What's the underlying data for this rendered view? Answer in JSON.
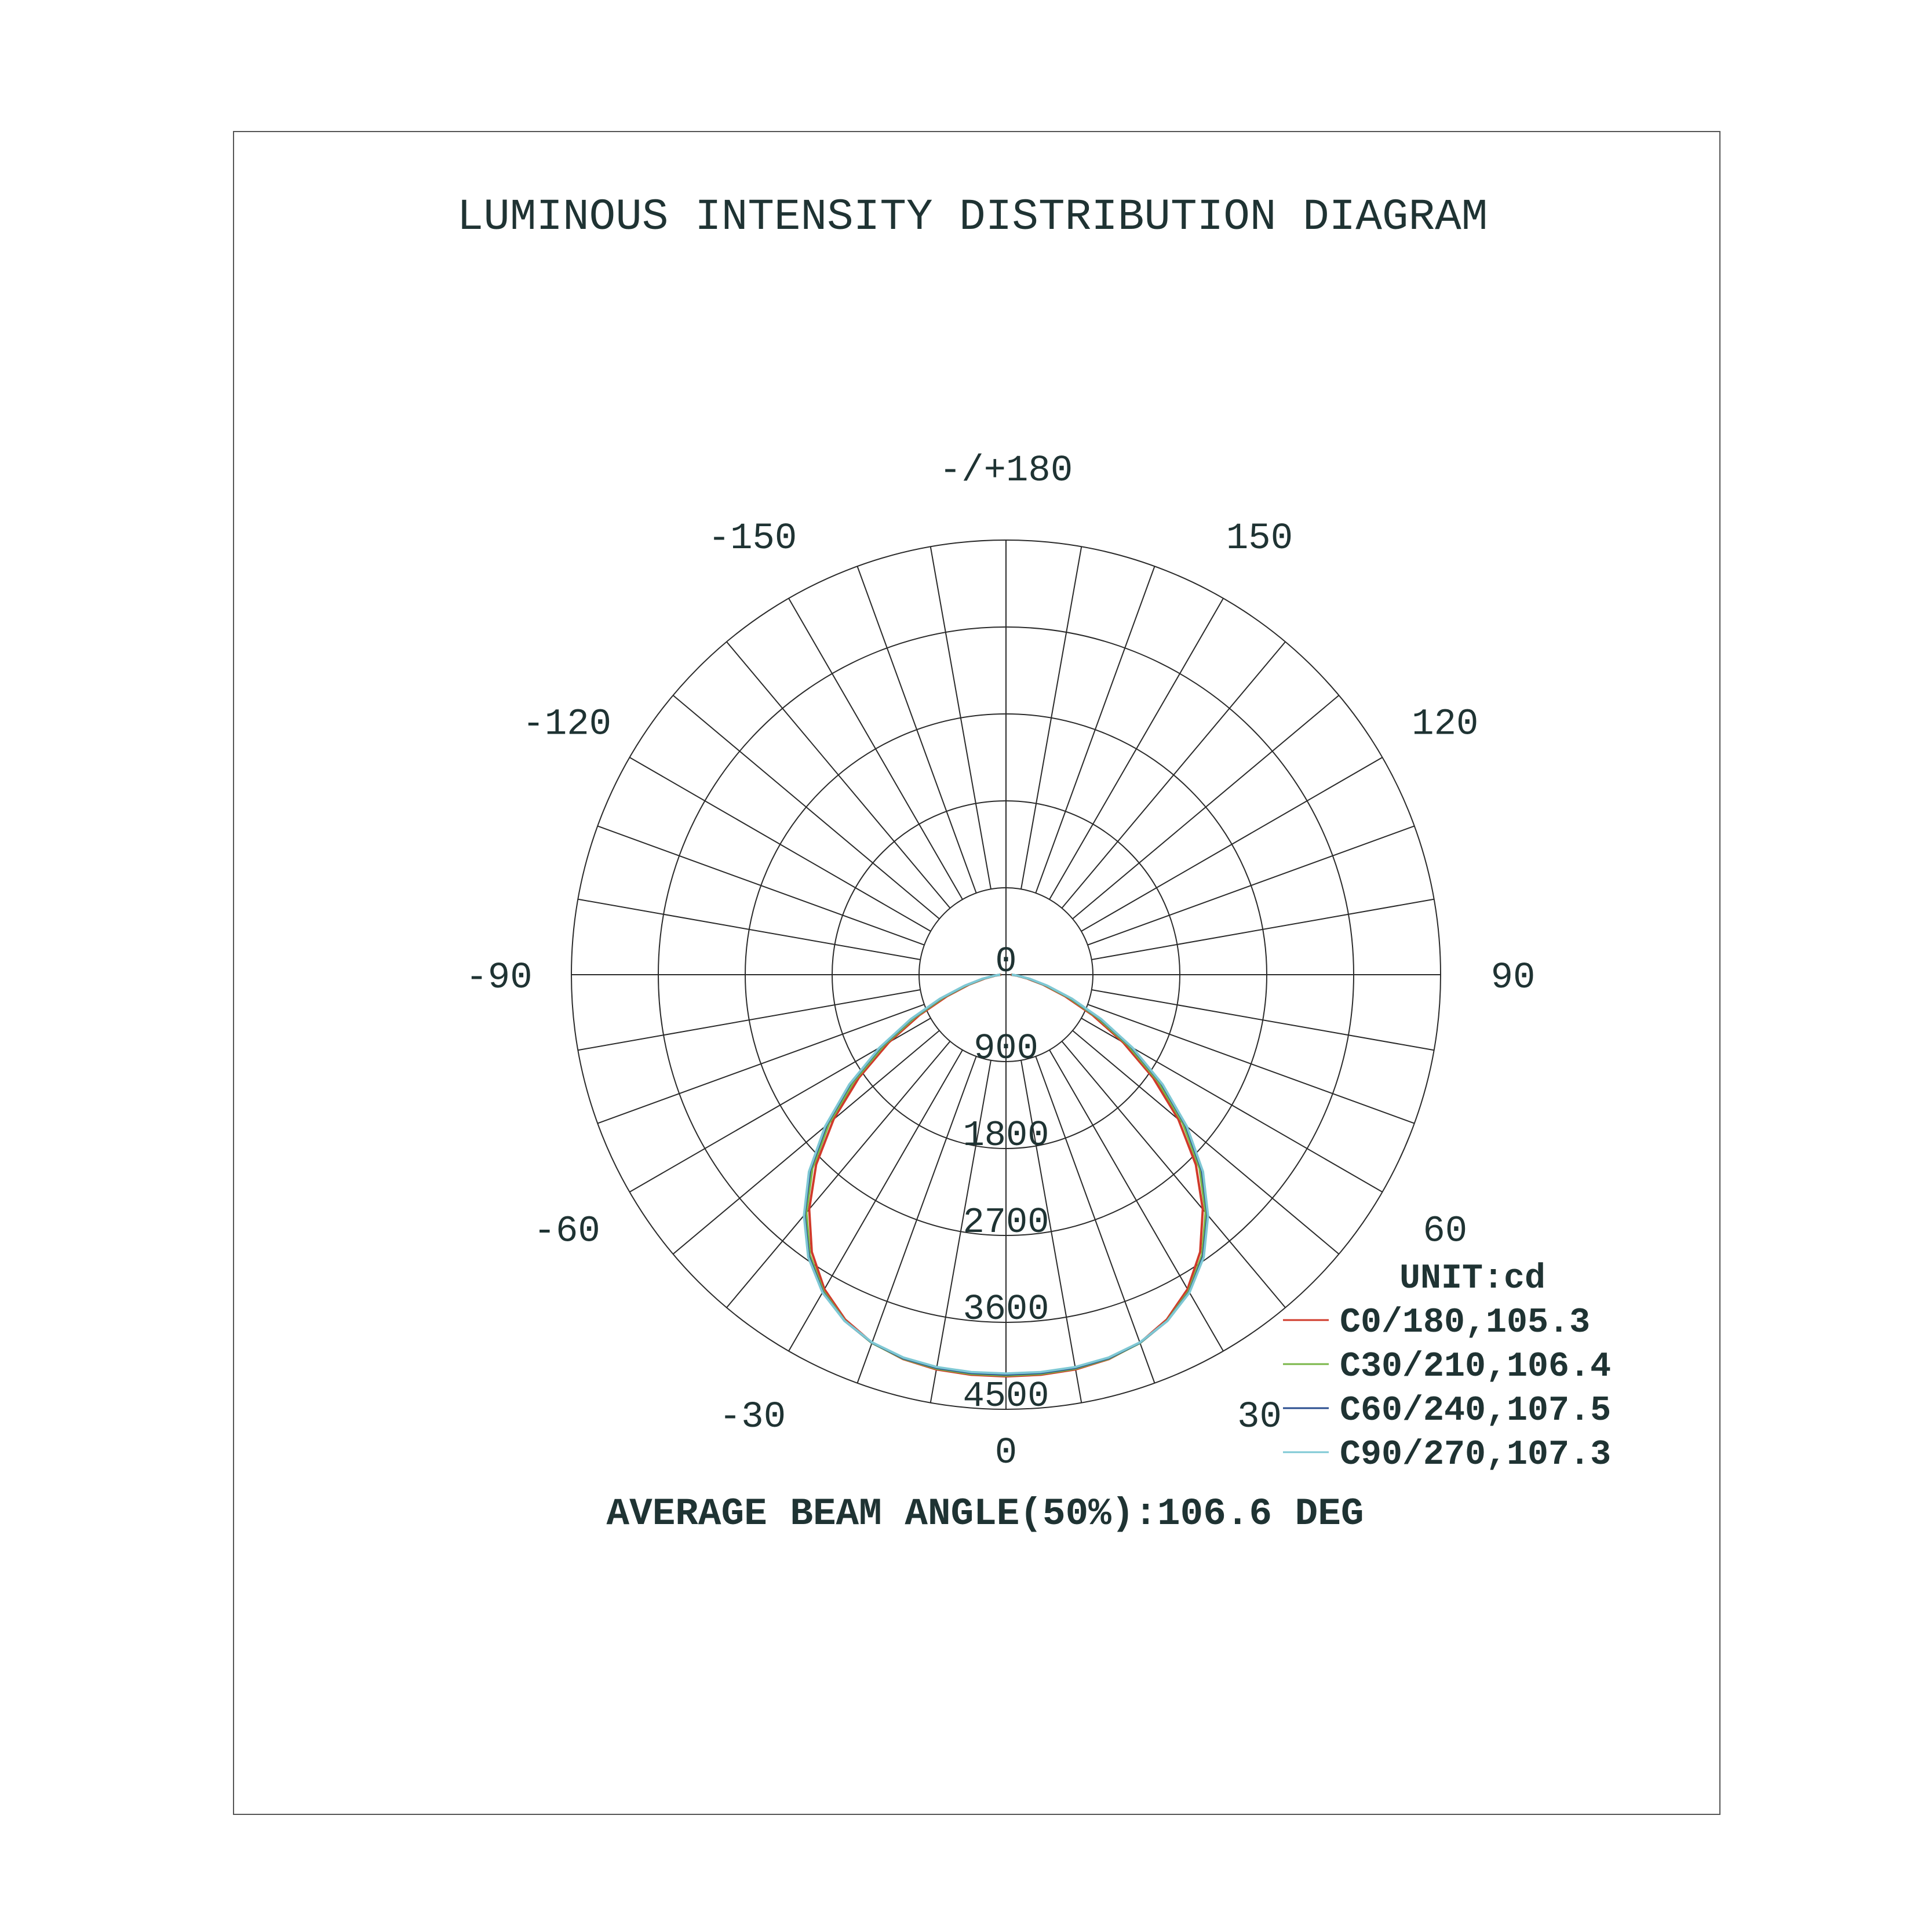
{
  "chart_data": {
    "type": "polar-line",
    "title": "LUMINOUS INTENSITY DISTRIBUTION DIAGRAM",
    "unit_label": "UNIT:cd",
    "radial_ticks": [
      0,
      900,
      1800,
      2700,
      3600,
      4500
    ],
    "radial_tick_labels": [
      "0",
      "900",
      "1800",
      "2700",
      "3600",
      "4500"
    ],
    "radial_range": [
      0,
      4500
    ],
    "angle_grid_step_deg": 10,
    "angle_labels": [
      {
        "angle": 0,
        "label": "0"
      },
      {
        "angle": 30,
        "label": "30"
      },
      {
        "angle": 60,
        "label": "60"
      },
      {
        "angle": 90,
        "label": "90"
      },
      {
        "angle": 120,
        "label": "120"
      },
      {
        "angle": 150,
        "label": "150"
      },
      {
        "angle": 180,
        "label": "-/+180"
      },
      {
        "angle": -150,
        "label": "-150"
      },
      {
        "angle": -120,
        "label": "-120"
      },
      {
        "angle": -90,
        "label": "-90"
      },
      {
        "angle": -60,
        "label": "-60"
      },
      {
        "angle": -30,
        "label": "-30"
      }
    ],
    "gamma": [
      -90,
      -85,
      -80,
      -75,
      -70,
      -65,
      -60,
      -55,
      -50,
      -45,
      -40,
      -35,
      -30,
      -25,
      -20,
      -15,
      -10,
      -5,
      0,
      5,
      10,
      15,
      20,
      25,
      30,
      35,
      40,
      45,
      50,
      55,
      60,
      65,
      70,
      75,
      80,
      85,
      90
    ],
    "series": [
      {
        "name": "C0/180,105.3",
        "color": "#d03a2a",
        "values": [
          50,
          110,
          220,
          395,
          650,
          990,
          1400,
          1860,
          2330,
          2780,
          3170,
          3505,
          3760,
          3940,
          4055,
          4120,
          4150,
          4158,
          4160,
          4158,
          4150,
          4120,
          4055,
          3940,
          3760,
          3505,
          3170,
          2780,
          2330,
          1860,
          1400,
          990,
          650,
          395,
          220,
          110,
          50
        ]
      },
      {
        "name": "C30/210,106.4",
        "color": "#7ab648",
        "values": [
          55,
          119,
          235,
          419,
          688,
          1037,
          1458,
          1919,
          2390,
          2835,
          3216,
          3541,
          3783,
          3952,
          4058,
          4116,
          4142,
          4149,
          4150,
          4149,
          4142,
          4116,
          4058,
          3952,
          3783,
          3541,
          3216,
          2835,
          2390,
          1919,
          1458,
          1037,
          688,
          419,
          235,
          119,
          55
        ]
      },
      {
        "name": "C60/240,107.5",
        "color": "#2a4d8f",
        "values": [
          58,
          126,
          248,
          440,
          718,
          1075,
          1500,
          1965,
          2430,
          2870,
          3245,
          3560,
          3795,
          3955,
          4055,
          4110,
          4133,
          4139,
          4140,
          4139,
          4133,
          4110,
          4055,
          3955,
          3795,
          3560,
          3245,
          2870,
          2430,
          1965,
          1500,
          1075,
          718,
          440,
          248,
          126,
          58
        ]
      },
      {
        "name": "C90/270,107.3",
        "color": "#7ec8d4",
        "values": [
          60,
          128,
          252,
          447,
          728,
          1088,
          1515,
          1980,
          2445,
          2885,
          3255,
          3570,
          3800,
          3955,
          4052,
          4104,
          4125,
          4130,
          4130,
          4130,
          4125,
          4104,
          4052,
          3955,
          3800,
          3570,
          3255,
          2885,
          2445,
          1980,
          1515,
          1088,
          728,
          447,
          252,
          128,
          60
        ]
      }
    ],
    "legend_placement": "bottom-right",
    "footer": "AVERAGE BEAM ANGLE(50%):106.6 DEG"
  }
}
